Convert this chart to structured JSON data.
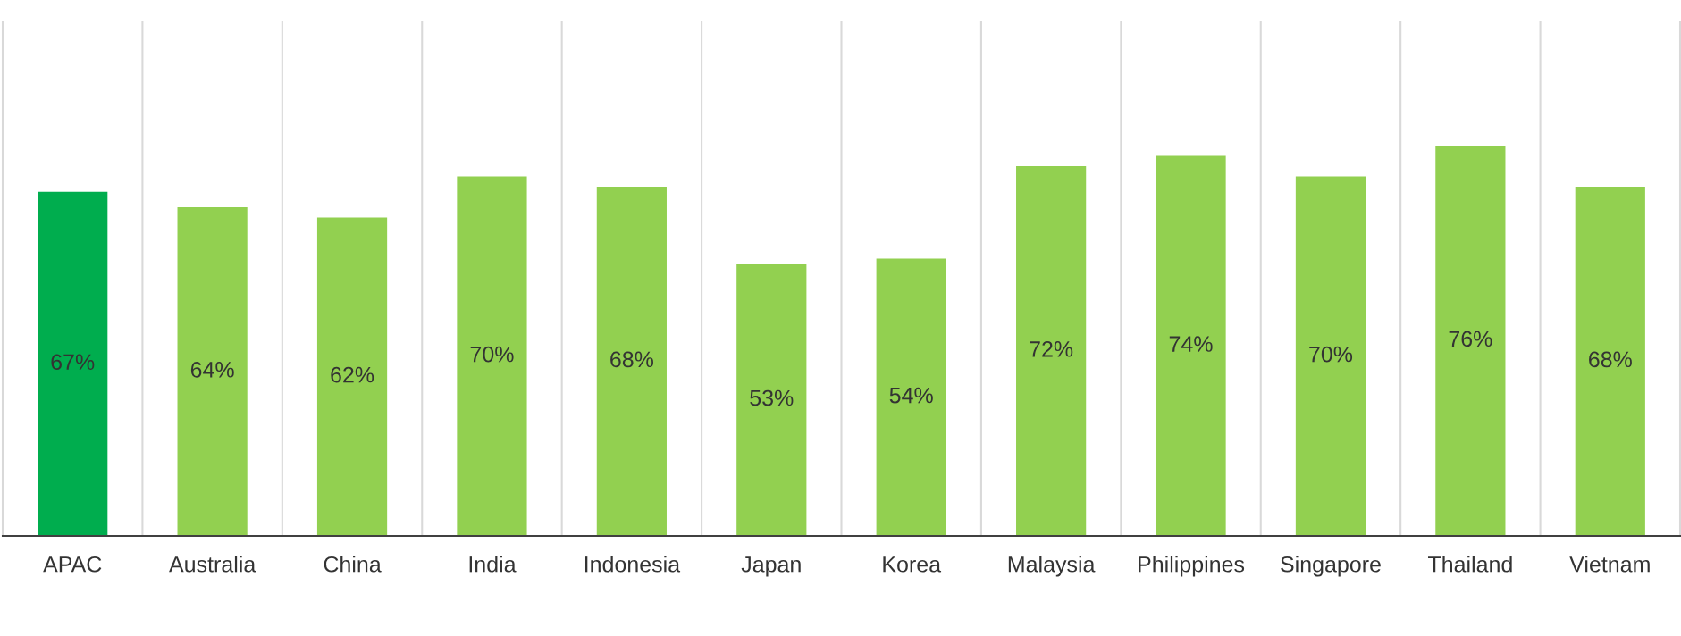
{
  "chart_data": {
    "type": "bar",
    "categories": [
      "APAC",
      "Australia",
      "China",
      "India",
      "Indonesia",
      "Japan",
      "Korea",
      "Malaysia",
      "Philippines",
      "Singapore",
      "Thailand",
      "Vietnam"
    ],
    "values": [
      67,
      64,
      62,
      70,
      68,
      53,
      54,
      72,
      74,
      70,
      76,
      68
    ],
    "colors": [
      "#00ad4e",
      "#92d050",
      "#92d050",
      "#92d050",
      "#92d050",
      "#92d050",
      "#92d050",
      "#92d050",
      "#92d050",
      "#92d050",
      "#92d050",
      "#92d050"
    ],
    "value_labels": [
      "67%",
      "64%",
      "62%",
      "70%",
      "68%",
      "53%",
      "54%",
      "72%",
      "74%",
      "70%",
      "76%",
      "68%"
    ],
    "ylim": [
      0,
      100
    ],
    "grid": "x",
    "tick_labels": "x"
  }
}
